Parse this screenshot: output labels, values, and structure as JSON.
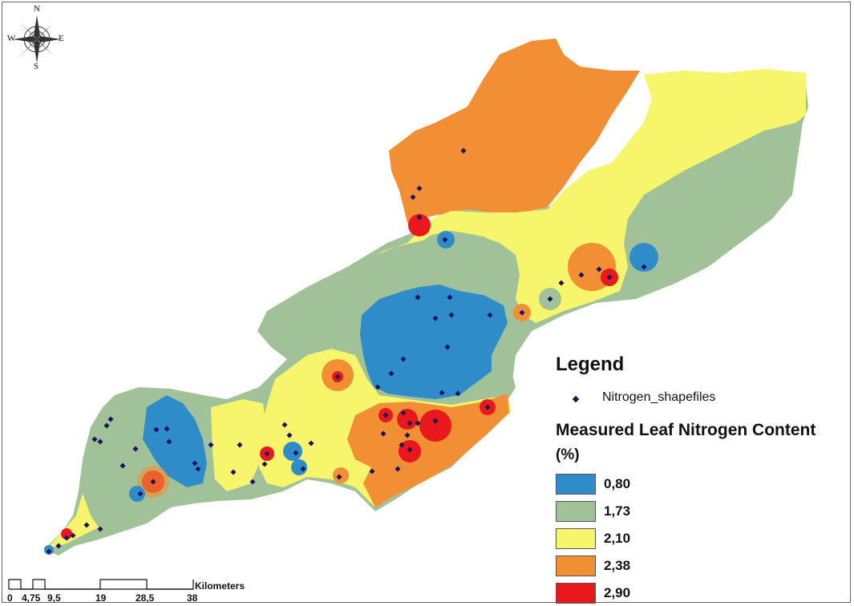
{
  "compass": {
    "n": "N",
    "s": "S",
    "e": "E",
    "w": "W"
  },
  "legend": {
    "title": "Legend",
    "point_layer": "Nitrogen_shapefiles",
    "heading": "Measured Leaf Nitrogen Content",
    "unit": "(%)",
    "classes": [
      {
        "label": "0,80",
        "color": "#2e8cc9"
      },
      {
        "label": "1,73",
        "color": "#a1c299"
      },
      {
        "label": "2,10",
        "color": "#f7f56b"
      },
      {
        "label": "2,38",
        "color": "#f28f35"
      },
      {
        "label": "2,90",
        "color": "#e8181c"
      }
    ]
  },
  "scale": {
    "unit_label": "Kilometers",
    "ticks": [
      "0",
      "4,75",
      "9,5",
      "19",
      "28,5",
      "38"
    ]
  },
  "colors": {
    "low": "#2e8cc9",
    "mid_low": "#a1c299",
    "mid": "#f7f56b",
    "mid_high": "#f28f35",
    "high": "#e8181c",
    "point": "#1b1360"
  }
}
